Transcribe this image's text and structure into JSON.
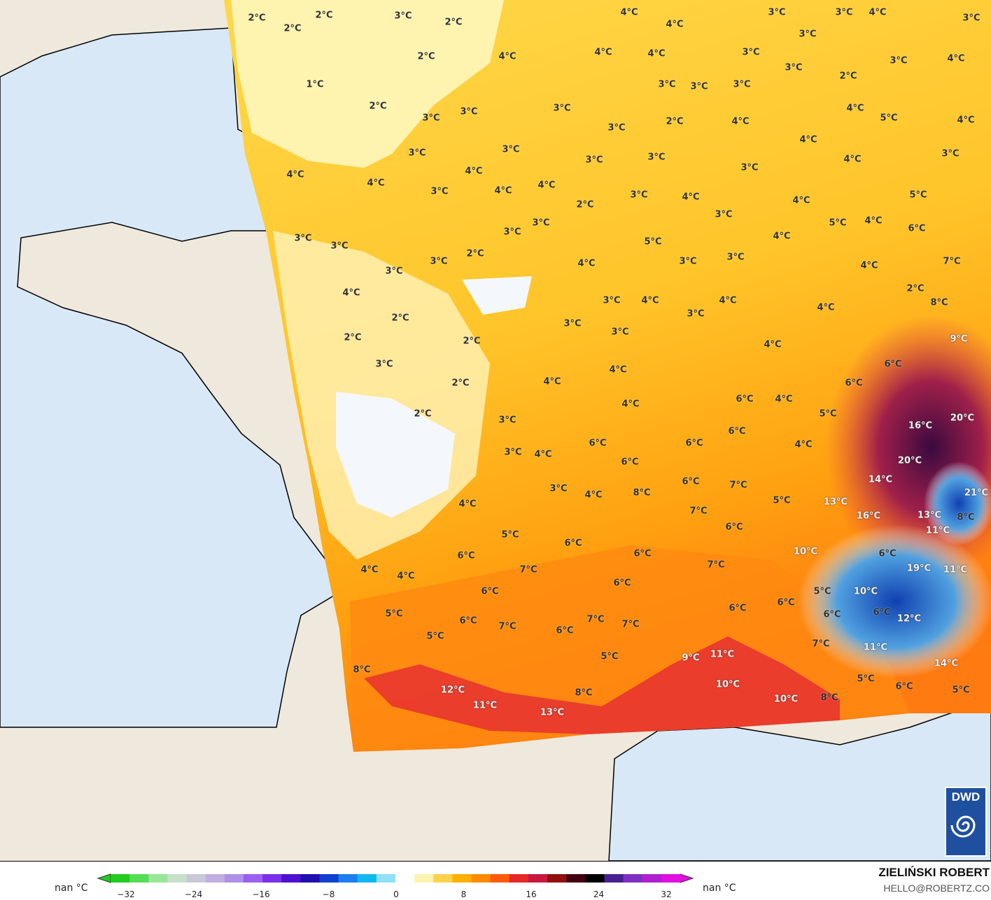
{
  "map": {
    "land_color": "#efe8dc",
    "sea_color": "#d8e8f6"
  },
  "labels": [
    "2°C",
    "2°C",
    "3°C",
    "2°C",
    "2°C",
    "2°C",
    "1°C",
    "2°C",
    "4°C",
    "4°C",
    "3°C",
    "3°C",
    "4°C",
    "3°C",
    "4°C",
    "4°C",
    "4°C",
    "3°C",
    "3°C",
    "3°C",
    "2°C",
    "3°C",
    "4°C",
    "3°C",
    "3°C",
    "3°C",
    "3°C",
    "3°C",
    "3°C",
    "3°C",
    "2°C",
    "4°C",
    "4°C",
    "5°C",
    "4°C",
    "4°C",
    "3°C",
    "3°C",
    "3°C",
    "3°C",
    "3°C",
    "4°C",
    "3°C",
    "4°C",
    "4°C",
    "4°C",
    "3°C",
    "4°C",
    "4°C",
    "2°C",
    "3°C",
    "4°C",
    "4°C",
    "5°C",
    "3°C",
    "3°C",
    "3°C",
    "5°C",
    "4°C",
    "6°C",
    "3°C",
    "3°C",
    "3°C",
    "3°C",
    "2°C",
    "5°C",
    "3°C",
    "3°C",
    "4°C",
    "4°C",
    "7°C",
    "4°C",
    "4°C",
    "2°C",
    "2°C",
    "3°C",
    "4°C",
    "4°C",
    "3°C",
    "4°C",
    "8°C",
    "2°C",
    "3°C",
    "3°C",
    "2°C",
    "4°C",
    "9°C",
    "3°C",
    "4°C",
    "6°C",
    "2°C",
    "4°C",
    "6°C",
    "4°C",
    "6°C",
    "4°C",
    "5°C",
    "2°C",
    "3°C",
    "16°C",
    "20°C",
    "6°C",
    "6°C",
    "6°C",
    "4°C",
    "3°C",
    "4°C",
    "6°C",
    "20°C",
    "6°C",
    "7°C",
    "14°C",
    "8°C",
    "4°C",
    "3°C",
    "4°C",
    "7°C",
    "5°C",
    "13°C",
    "16°C",
    "21°C",
    "13°C",
    "8°C",
    "6°C",
    "11°C",
    "5°C",
    "6°C",
    "6°C",
    "6°C",
    "7°C",
    "10°C",
    "6°C",
    "19°C",
    "11°C",
    "4°C",
    "4°C",
    "7°C",
    "6°C",
    "6°C",
    "5°C",
    "10°C",
    "6°C",
    "6°C",
    "6°C",
    "6°C",
    "5°C",
    "6°C",
    "7°C",
    "7°C",
    "7°C",
    "12°C",
    "5°C",
    "6°C",
    "7°C",
    "11°C",
    "5°C",
    "9°C",
    "11°C",
    "14°C",
    "8°C",
    "5°C",
    "6°C",
    "12°C",
    "10°C",
    "5°C",
    "11°C",
    "13°C",
    "8°C",
    "10°C",
    "8°C"
  ],
  "legend": {
    "left_label": "nan °C",
    "right_label": "nan °C",
    "ticks": [
      "−32",
      "−24",
      "−16",
      "−8",
      "0",
      "8",
      "16",
      "24",
      "32"
    ],
    "range": [
      -32,
      32
    ],
    "colors": [
      "#22cc22",
      "#55dd55",
      "#99e699",
      "#c8e0c8",
      "#c8c8d8",
      "#c0b0e0",
      "#b090e8",
      "#9a60f0",
      "#7a30e8",
      "#5010d0",
      "#2010b0",
      "#1040d0",
      "#1a80f0",
      "#10b8f0",
      "#90e0f8",
      "#ffffff",
      "#fff3b0",
      "#ffd24a",
      "#ffb000",
      "#ff8a00",
      "#ff5a10",
      "#e82828",
      "#c81840",
      "#901010",
      "#400010",
      "#000000",
      "#4a2090",
      "#8030c0",
      "#b020d0",
      "#e010e0"
    ]
  },
  "branding": {
    "author": "ZIELIŃSKI ROBERT",
    "email": "HELLO@ROBERTZ.CO",
    "logo_text": "DWD"
  }
}
